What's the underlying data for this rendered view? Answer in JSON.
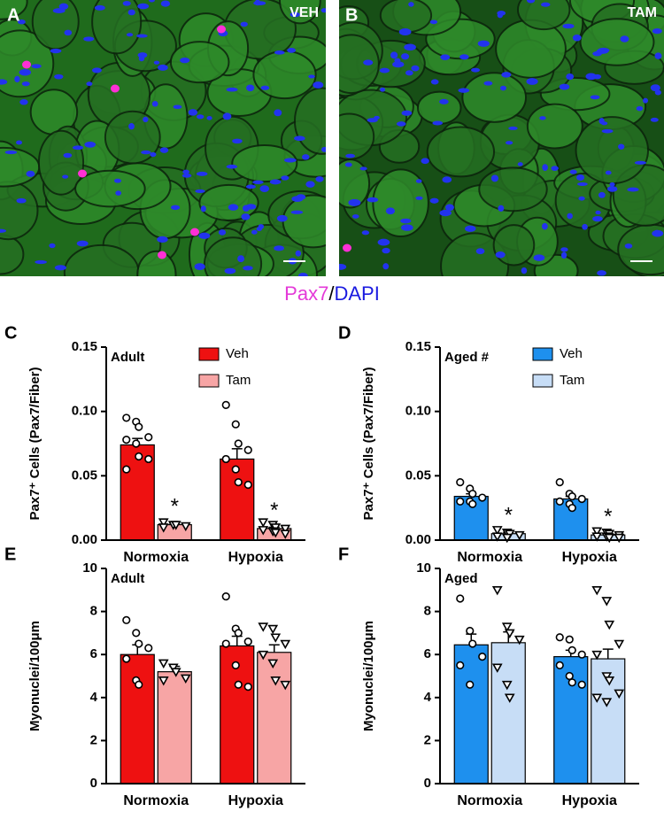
{
  "images": [
    {
      "letter": "A",
      "label": "VEH"
    },
    {
      "letter": "B",
      "label": "TAM"
    }
  ],
  "stain_legend": {
    "marker": "Pax7",
    "separator": "/",
    "counterstain": "DAPI"
  },
  "chart_data": [
    {
      "type": "bar",
      "panel": "C",
      "title": "Adult",
      "ylabel": "Pax7⁺ Cells (Pax7/Fiber)",
      "categories": [
        "Normoxia",
        "Hypoxia"
      ],
      "ylim": [
        0,
        0.15
      ],
      "yticks": [
        {
          "value": 0,
          "label": "0.00"
        },
        0.05,
        {
          "value": 0.1,
          "label": "0.10"
        },
        0.15
      ],
      "legend": true,
      "series": [
        {
          "name": "Veh",
          "color": "#ee1111",
          "marker": "circle",
          "values": [
            0.074,
            0.063
          ],
          "errors": [
            0.005,
            0.008
          ],
          "points": [
            [
              0.095,
              0.092,
              0.088,
              0.08,
              0.078,
              0.075,
              0.065,
              0.063,
              0.055
            ],
            [
              0.105,
              0.09,
              0.075,
              0.07,
              0.063,
              0.055,
              0.045,
              0.043
            ]
          ]
        },
        {
          "name": "Tam",
          "color": "#f7a5a5",
          "marker": "triangle",
          "values": [
            0.012,
            0.009
          ],
          "errors": [
            0.001,
            0.001
          ],
          "significance": [
            "*",
            "*"
          ],
          "points": [
            [
              0.014,
              0.012,
              0.012,
              0.011,
              0.01
            ],
            [
              0.014,
              0.012,
              0.01,
              0.009,
              0.008,
              0.007,
              0.006,
              0.005
            ]
          ]
        }
      ]
    },
    {
      "type": "bar",
      "panel": "D",
      "title": "Aged #",
      "ylabel": "Pax7⁺ Cells (Pax7/Fiber)",
      "categories": [
        "Normoxia",
        "Hypoxia"
      ],
      "ylim": [
        0,
        0.15
      ],
      "yticks": [
        {
          "value": 0,
          "label": "0.00"
        },
        0.05,
        {
          "value": 0.1,
          "label": "0.10"
        },
        0.15
      ],
      "legend": true,
      "series": [
        {
          "name": "Veh",
          "color": "#1e90ee",
          "marker": "circle",
          "values": [
            0.034,
            0.032
          ],
          "errors": [
            0.002,
            0.002
          ],
          "points": [
            [
              0.045,
              0.04,
              0.036,
              0.033,
              0.03,
              0.03,
              0.028
            ],
            [
              0.045,
              0.036,
              0.034,
              0.032,
              0.03,
              0.028,
              0.025
            ]
          ]
        },
        {
          "name": "Tam",
          "color": "#c7ddf6",
          "marker": "triangle",
          "values": [
            0.005,
            0.004
          ],
          "errors": [
            0.001,
            0.001
          ],
          "significance": [
            "*",
            "*"
          ],
          "points": [
            [
              0.008,
              0.006,
              0.005,
              0.004,
              0.003,
              0.002
            ],
            [
              0.007,
              0.006,
              0.005,
              0.004,
              0.003,
              0.003,
              0.002,
              0.002
            ]
          ]
        }
      ]
    },
    {
      "type": "bar",
      "panel": "E",
      "title": "Adult",
      "ylabel": "Myonuclei/100μm",
      "categories": [
        "Normoxia",
        "Hypoxia"
      ],
      "ylim": [
        0,
        10
      ],
      "yticks": [
        0,
        2,
        4,
        6,
        8,
        10
      ],
      "series": [
        {
          "name": "Veh",
          "color": "#ee1111",
          "marker": "circle",
          "values": [
            6.0,
            6.4
          ],
          "errors": [
            0.45,
            0.45
          ],
          "points": [
            [
              7.6,
              7.0,
              6.5,
              6.3,
              5.8,
              4.8,
              4.6
            ],
            [
              8.7,
              7.2,
              7.0,
              6.6,
              6.5,
              5.5,
              4.6,
              4.5
            ]
          ]
        },
        {
          "name": "Tam",
          "color": "#f7a5a5",
          "marker": "triangle",
          "values": [
            5.2,
            6.1
          ],
          "errors": [
            0.25,
            0.35
          ],
          "points": [
            [
              5.6,
              5.4,
              5.2,
              4.9,
              4.8
            ],
            [
              7.3,
              7.2,
              6.8,
              6.5,
              6.0,
              5.6,
              4.8,
              4.6
            ]
          ]
        }
      ]
    },
    {
      "type": "bar",
      "panel": "F",
      "title": "Aged",
      "ylabel": "Myonuclei/100μm",
      "categories": [
        "Normoxia",
        "Hypoxia"
      ],
      "ylim": [
        0,
        10
      ],
      "yticks": [
        0,
        2,
        4,
        6,
        8,
        10
      ],
      "series": [
        {
          "name": "Veh",
          "color": "#1e90ee",
          "marker": "circle",
          "values": [
            6.45,
            5.9
          ],
          "errors": [
            0.5,
            0.3
          ],
          "points": [
            [
              8.6,
              7.1,
              6.5,
              5.9,
              5.5,
              4.6
            ],
            [
              6.8,
              6.7,
              6.2,
              6.0,
              5.5,
              5.0,
              4.7,
              4.6
            ]
          ]
        },
        {
          "name": "Tam",
          "color": "#c7ddf6",
          "marker": "triangle",
          "values": [
            6.55,
            5.8
          ],
          "errors": [
            0.5,
            0.45
          ],
          "points": [
            [
              9.0,
              7.3,
              7.0,
              6.7,
              5.4,
              4.6,
              4.0
            ],
            [
              9.0,
              8.5,
              7.4,
              6.5,
              6.0,
              5.0,
              4.8,
              4.2,
              4.0,
              3.8
            ]
          ]
        }
      ]
    }
  ]
}
